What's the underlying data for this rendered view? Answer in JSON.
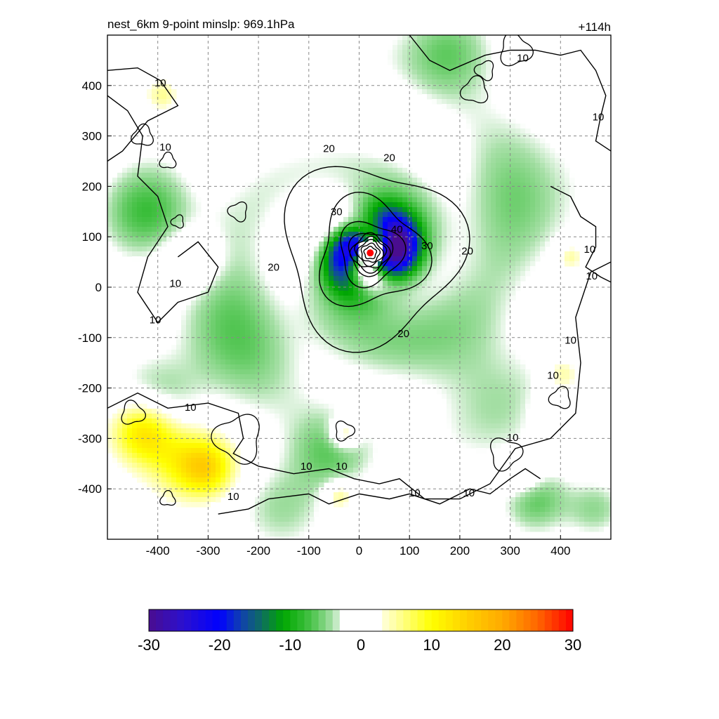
{
  "chart_data": {
    "type": "heatmap",
    "title": "nest_6km  9-point minslp: 969.1hPa",
    "lead_time": "+114h",
    "xlim": [
      -500,
      500
    ],
    "ylim": [
      -500,
      500
    ],
    "x_ticks": [
      -400,
      -300,
      -200,
      -100,
      0,
      100,
      200,
      300,
      400
    ],
    "y_ticks": [
      400,
      300,
      200,
      100,
      0,
      -100,
      -200,
      -300,
      -400
    ],
    "x_tick_labels": [
      "-400",
      "-300",
      "-200",
      "-100",
      "0",
      "100",
      "200",
      "300",
      "400"
    ],
    "y_tick_labels": [
      "400",
      "300",
      "200",
      "100",
      "0",
      "-100",
      "-200",
      "-300",
      "-400"
    ],
    "grid": true,
    "center_marker": {
      "x": 22,
      "y": 68,
      "color": "#ff0000"
    },
    "contour_labels": [
      {
        "text": "10",
        "x": 325,
        "y": 455
      },
      {
        "text": "10",
        "x": -395,
        "y": 405
      },
      {
        "text": "10",
        "x": 475,
        "y": 338
      },
      {
        "text": "10",
        "x": -385,
        "y": 278
      },
      {
        "text": "20",
        "x": -60,
        "y": 275
      },
      {
        "text": "20",
        "x": 60,
        "y": 257
      },
      {
        "text": "30",
        "x": -45,
        "y": 150
      },
      {
        "text": "40",
        "x": 75,
        "y": 115
      },
      {
        "text": "30",
        "x": 135,
        "y": 82
      },
      {
        "text": "20",
        "x": 215,
        "y": 72
      },
      {
        "text": "20",
        "x": -170,
        "y": 40
      },
      {
        "text": "10",
        "x": 458,
        "y": 75
      },
      {
        "text": "10",
        "x": 462,
        "y": 22
      },
      {
        "text": "10",
        "x": -365,
        "y": 8
      },
      {
        "text": "10",
        "x": -405,
        "y": -65
      },
      {
        "text": "20",
        "x": 88,
        "y": -92
      },
      {
        "text": "10",
        "x": 420,
        "y": -105
      },
      {
        "text": "10",
        "x": 385,
        "y": -175
      },
      {
        "text": "10",
        "x": -335,
        "y": -238
      },
      {
        "text": "10",
        "x": -105,
        "y": -355
      },
      {
        "text": "10",
        "x": -35,
        "y": -355
      },
      {
        "text": "10",
        "x": 305,
        "y": -298
      },
      {
        "text": "10",
        "x": -250,
        "y": -415
      },
      {
        "text": "10",
        "x": 110,
        "y": -408
      },
      {
        "text": "10",
        "x": 218,
        "y": -408
      }
    ],
    "colorbar": {
      "min": -30,
      "max": 30,
      "ticks": [
        -30,
        -20,
        -10,
        0,
        10,
        20,
        30
      ],
      "tick_labels": [
        "-30",
        "-20",
        "-10",
        "0",
        "10",
        "20",
        "30"
      ],
      "stops": [
        {
          "value": -30,
          "color": "#4a0d8f"
        },
        {
          "value": -25,
          "color": "#2a10d0"
        },
        {
          "value": -20,
          "color": "#0000ff"
        },
        {
          "value": -17,
          "color": "#1040b0"
        },
        {
          "value": -14,
          "color": "#0e6e5e"
        },
        {
          "value": -11,
          "color": "#00a800"
        },
        {
          "value": -8,
          "color": "#33bb33"
        },
        {
          "value": -6,
          "color": "#66cc66"
        },
        {
          "value": -4,
          "color": "#a8e0a8"
        },
        {
          "value": -3,
          "color": "#dff3df"
        },
        {
          "value": -2.5,
          "color": "#ffffff"
        },
        {
          "value": 2.5,
          "color": "#ffffff"
        },
        {
          "value": 3,
          "color": "#ffffdd"
        },
        {
          "value": 6,
          "color": "#ffff80"
        },
        {
          "value": 10,
          "color": "#ffff00"
        },
        {
          "value": 15,
          "color": "#ffd000"
        },
        {
          "value": 20,
          "color": "#ffaa00"
        },
        {
          "value": 25,
          "color": "#ff6600"
        },
        {
          "value": 30,
          "color": "#ff0000"
        }
      ]
    }
  }
}
